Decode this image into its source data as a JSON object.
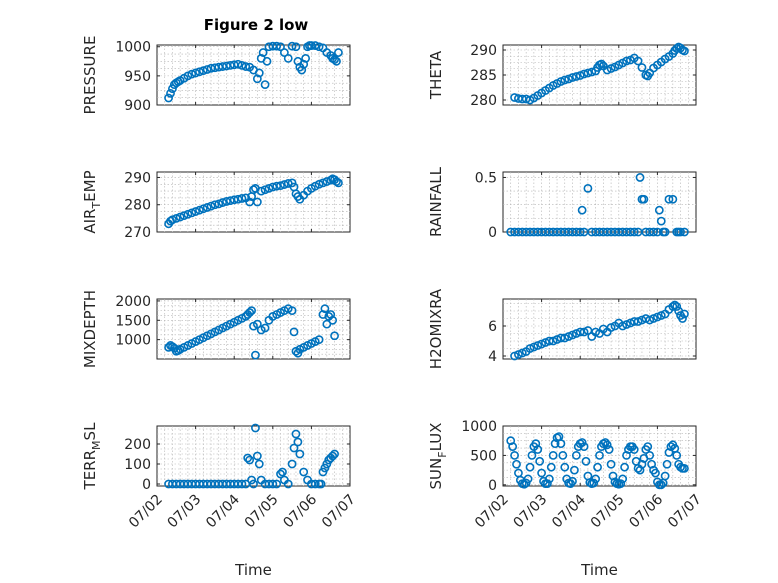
{
  "figure": {
    "title": "Figure 2 low",
    "marker_color": "#0072BD"
  },
  "chart_data": [
    {
      "type": "scatter",
      "title": "Figure 2 low",
      "ylabel": "PRESSURE",
      "ylabel_sub": "",
      "ylabel_after": "",
      "xlabel": "",
      "xlim": [
        0,
        5
      ],
      "ylim": [
        900,
        1003
      ],
      "yticks": [
        900,
        950,
        1000
      ],
      "show_xticklabels": false,
      "x": [
        0.3,
        0.35,
        0.4,
        0.45,
        0.5,
        0.55,
        0.6,
        0.7,
        0.8,
        0.9,
        1.0,
        1.1,
        1.2,
        1.3,
        1.4,
        1.5,
        1.6,
        1.7,
        1.8,
        1.9,
        2.0,
        2.1,
        2.2,
        2.3,
        2.4,
        2.5,
        2.6,
        2.65,
        2.7,
        2.75,
        2.8,
        2.85,
        2.9,
        3.0,
        3.1,
        3.2,
        3.3,
        3.4,
        3.5,
        3.6,
        3.65,
        3.7,
        3.75,
        3.8,
        3.85,
        3.9,
        3.95,
        4.0,
        4.1,
        4.2,
        4.3,
        4.4,
        4.5,
        4.55,
        4.6,
        4.65,
        4.7
      ],
      "y": [
        912,
        920,
        928,
        935,
        938,
        940,
        942,
        946,
        950,
        953,
        955,
        957,
        959,
        961,
        963,
        964,
        965,
        966,
        967,
        968,
        969,
        970,
        968,
        966,
        965,
        960,
        945,
        955,
        980,
        990,
        935,
        975,
        1000,
        1001,
        1001,
        1000,
        990,
        980,
        1001,
        1000,
        975,
        965,
        960,
        970,
        980,
        1000,
        1002,
        1002,
        1002,
        1000,
        998,
        990,
        985,
        980,
        978,
        975,
        990
      ]
    },
    {
      "type": "scatter",
      "title": "",
      "ylabel": "THETA",
      "ylabel_sub": "",
      "ylabel_after": "",
      "xlabel": "",
      "xlim": [
        0,
        5
      ],
      "ylim": [
        279,
        291
      ],
      "yticks": [
        280,
        285,
        290
      ],
      "show_xticklabels": false,
      "x": [
        0.3,
        0.4,
        0.5,
        0.6,
        0.7,
        0.8,
        0.9,
        1.0,
        1.1,
        1.2,
        1.3,
        1.4,
        1.5,
        1.6,
        1.7,
        1.8,
        1.9,
        2.0,
        2.1,
        2.2,
        2.3,
        2.4,
        2.45,
        2.5,
        2.55,
        2.6,
        2.7,
        2.8,
        2.9,
        3.0,
        3.1,
        3.2,
        3.3,
        3.4,
        3.5,
        3.6,
        3.7,
        3.75,
        3.8,
        3.9,
        4.0,
        4.1,
        4.2,
        4.3,
        4.4,
        4.45,
        4.5,
        4.55,
        4.6,
        4.65,
        4.7
      ],
      "y": [
        280.5,
        280.3,
        280.2,
        280.2,
        280.0,
        280.4,
        280.9,
        281.4,
        281.9,
        282.4,
        282.9,
        283.3,
        283.7,
        284.0,
        284.2,
        284.5,
        284.7,
        284.9,
        285.2,
        285.4,
        285.6,
        285.8,
        286.5,
        287.0,
        287.2,
        286.8,
        286.0,
        286.3,
        286.6,
        287.0,
        287.4,
        287.8,
        288.0,
        288.4,
        287.8,
        286.5,
        285.0,
        284.8,
        285.4,
        286.4,
        287.0,
        287.6,
        288.2,
        288.7,
        289.3,
        289.9,
        290.3,
        290.6,
        290.4,
        290.0,
        289.8
      ]
    },
    {
      "type": "scatter",
      "title": "",
      "ylabel": "AIR",
      "ylabel_sub": "T",
      "ylabel_after": "EMP",
      "xlabel": "",
      "xlim": [
        0,
        5
      ],
      "ylim": [
        270,
        292
      ],
      "yticks": [
        270,
        280,
        290
      ],
      "show_xticklabels": false,
      "x": [
        0.3,
        0.35,
        0.4,
        0.5,
        0.6,
        0.7,
        0.8,
        0.9,
        1.0,
        1.1,
        1.2,
        1.3,
        1.4,
        1.5,
        1.6,
        1.7,
        1.8,
        1.9,
        2.0,
        2.1,
        2.2,
        2.3,
        2.4,
        2.45,
        2.5,
        2.55,
        2.6,
        2.7,
        2.8,
        2.9,
        3.0,
        3.1,
        3.2,
        3.3,
        3.4,
        3.5,
        3.55,
        3.6,
        3.65,
        3.7,
        3.8,
        3.9,
        4.0,
        4.1,
        4.2,
        4.3,
        4.4,
        4.5,
        4.55,
        4.6,
        4.65,
        4.7
      ],
      "y": [
        273,
        274,
        274.5,
        275,
        275.5,
        276,
        276.5,
        277,
        277.5,
        278,
        278.5,
        279,
        279.5,
        280,
        280.3,
        280.8,
        281.2,
        281.5,
        281.8,
        282,
        282.3,
        282.5,
        281,
        283,
        285.5,
        286,
        281,
        285,
        285.5,
        286,
        286.5,
        286.8,
        287,
        287.4,
        287.8,
        288,
        286.5,
        284,
        283,
        282,
        283.5,
        285,
        286,
        286.8,
        287.5,
        288,
        288.5,
        289,
        289.5,
        289.2,
        288.5,
        288
      ]
    },
    {
      "type": "scatter",
      "title": "",
      "ylabel": "RAINFALL",
      "ylabel_sub": "",
      "ylabel_after": "",
      "xlabel": "",
      "xlim": [
        0,
        5
      ],
      "ylim": [
        0,
        0.55
      ],
      "yticks": [
        0,
        0.5
      ],
      "show_xticklabels": false,
      "x": [
        0.2,
        0.3,
        0.4,
        0.5,
        0.6,
        0.7,
        0.8,
        0.9,
        1.0,
        1.1,
        1.2,
        1.3,
        1.4,
        1.5,
        1.6,
        1.7,
        1.8,
        1.9,
        2.0,
        2.05,
        2.1,
        2.2,
        2.3,
        2.4,
        2.5,
        2.6,
        2.7,
        2.8,
        2.9,
        3.0,
        3.1,
        3.2,
        3.3,
        3.4,
        3.5,
        3.55,
        3.6,
        3.65,
        3.7,
        3.8,
        3.9,
        4.0,
        4.05,
        4.1,
        4.15,
        4.2,
        4.3,
        4.4,
        4.5,
        4.55,
        4.6,
        4.7
      ],
      "y": [
        0,
        0,
        0,
        0,
        0,
        0,
        0,
        0,
        0,
        0,
        0,
        0,
        0,
        0,
        0,
        0,
        0,
        0,
        0,
        0.2,
        0,
        0.4,
        0,
        0,
        0,
        0,
        0,
        0,
        0,
        0,
        0,
        0,
        0,
        0,
        0,
        0.5,
        0.3,
        0.3,
        0,
        0,
        0,
        0,
        0.2,
        0.1,
        0,
        0,
        0.3,
        0.3,
        0,
        0,
        0,
        0
      ]
    },
    {
      "type": "scatter",
      "title": "",
      "ylabel": "MIXDEPTH",
      "ylabel_sub": "",
      "ylabel_after": "",
      "xlabel": "",
      "xlim": [
        0,
        5
      ],
      "ylim": [
        500,
        2050
      ],
      "yticks": [
        1000,
        1500,
        2000
      ],
      "show_xticklabels": false,
      "x": [
        0.3,
        0.35,
        0.4,
        0.45,
        0.5,
        0.55,
        0.6,
        0.7,
        0.8,
        0.9,
        1.0,
        1.1,
        1.2,
        1.3,
        1.4,
        1.5,
        1.6,
        1.7,
        1.8,
        1.9,
        2.0,
        2.1,
        2.2,
        2.3,
        2.35,
        2.4,
        2.45,
        2.5,
        2.55,
        2.6,
        2.7,
        2.8,
        2.9,
        3.0,
        3.1,
        3.2,
        3.3,
        3.4,
        3.5,
        3.55,
        3.6,
        3.65,
        3.7,
        3.8,
        3.9,
        4.0,
        4.1,
        4.2,
        4.3,
        4.35,
        4.4,
        4.45,
        4.5,
        4.55,
        4.6
      ],
      "y": [
        800,
        850,
        820,
        780,
        700,
        720,
        750,
        800,
        850,
        900,
        950,
        1000,
        1050,
        1100,
        1150,
        1200,
        1250,
        1300,
        1350,
        1400,
        1450,
        1500,
        1550,
        1600,
        1650,
        1700,
        1750,
        1350,
        600,
        1400,
        1250,
        1300,
        1500,
        1600,
        1650,
        1700,
        1750,
        1800,
        1750,
        1200,
        700,
        650,
        750,
        800,
        850,
        900,
        950,
        1000,
        1650,
        1800,
        1400,
        1600,
        1650,
        1500,
        1100
      ]
    },
    {
      "type": "scatter",
      "title": "",
      "ylabel": "H2OMIXRA",
      "ylabel_sub": "",
      "ylabel_after": "",
      "xlabel": "",
      "xlim": [
        0,
        5
      ],
      "ylim": [
        3.8,
        7.8
      ],
      "yticks": [
        4,
        6
      ],
      "show_xticklabels": false,
      "x": [
        0.3,
        0.4,
        0.5,
        0.6,
        0.7,
        0.8,
        0.9,
        1.0,
        1.1,
        1.2,
        1.3,
        1.4,
        1.5,
        1.6,
        1.7,
        1.8,
        1.9,
        2.0,
        2.1,
        2.2,
        2.3,
        2.4,
        2.5,
        2.6,
        2.7,
        2.8,
        2.9,
        3.0,
        3.1,
        3.2,
        3.3,
        3.4,
        3.5,
        3.6,
        3.7,
        3.8,
        3.9,
        4.0,
        4.1,
        4.2,
        4.3,
        4.4,
        4.45,
        4.5,
        4.55,
        4.6,
        4.65,
        4.7
      ],
      "y": [
        4.0,
        4.1,
        4.2,
        4.3,
        4.5,
        4.6,
        4.7,
        4.8,
        4.9,
        5.0,
        5.0,
        5.1,
        5.2,
        5.2,
        5.3,
        5.4,
        5.5,
        5.6,
        5.6,
        5.7,
        5.3,
        5.6,
        5.5,
        5.8,
        5.6,
        5.9,
        6.0,
        6.2,
        6.0,
        6.1,
        6.2,
        6.3,
        6.3,
        6.4,
        6.5,
        6.4,
        6.5,
        6.6,
        6.7,
        6.8,
        7.1,
        7.3,
        7.4,
        7.3,
        7.0,
        6.7,
        6.5,
        6.8
      ]
    },
    {
      "type": "scatter",
      "title": "",
      "ylabel": "TERR",
      "ylabel_sub": "M",
      "ylabel_after": "SL",
      "xlabel": "Time",
      "xlim": [
        0,
        5
      ],
      "ylim": [
        -10,
        290
      ],
      "yticks": [
        0,
        100,
        200
      ],
      "show_xticklabels": true,
      "xticks": [
        0,
        1,
        2,
        3,
        4,
        5
      ],
      "xticklabels": [
        "07/02",
        "07/03",
        "07/04",
        "07/05",
        "07/06",
        "07/07"
      ],
      "x": [
        0.3,
        0.4,
        0.5,
        0.6,
        0.7,
        0.8,
        0.9,
        1.0,
        1.1,
        1.2,
        1.3,
        1.4,
        1.5,
        1.6,
        1.7,
        1.8,
        1.9,
        2.0,
        2.1,
        2.2,
        2.3,
        2.35,
        2.4,
        2.45,
        2.5,
        2.55,
        2.6,
        2.65,
        2.7,
        2.8,
        2.9,
        3.0,
        3.1,
        3.2,
        3.25,
        3.3,
        3.4,
        3.5,
        3.55,
        3.6,
        3.65,
        3.7,
        3.8,
        3.9,
        4.0,
        4.1,
        4.2,
        4.25,
        4.3,
        4.35,
        4.4,
        4.45,
        4.5,
        4.55,
        4.6
      ],
      "y": [
        0,
        0,
        0,
        0,
        0,
        0,
        0,
        0,
        0,
        0,
        0,
        0,
        0,
        0,
        0,
        0,
        0,
        0,
        0,
        0,
        0,
        130,
        120,
        20,
        0,
        280,
        140,
        100,
        20,
        0,
        0,
        0,
        0,
        50,
        60,
        20,
        0,
        100,
        180,
        250,
        210,
        150,
        60,
        20,
        0,
        0,
        0,
        0,
        60,
        80,
        100,
        120,
        130,
        140,
        150
      ]
    },
    {
      "type": "scatter",
      "title": "",
      "ylabel": "SUN",
      "ylabel_sub": "F",
      "ylabel_after": "LUX",
      "xlabel": "Time",
      "xlim": [
        0,
        5
      ],
      "ylim": [
        -20,
        1000
      ],
      "yticks": [
        0,
        500,
        1000
      ],
      "show_xticklabels": true,
      "xticks": [
        0,
        1,
        2,
        3,
        4,
        5
      ],
      "xticklabels": [
        "07/02",
        "07/03",
        "07/04",
        "07/05",
        "07/06",
        "07/07"
      ],
      "x": [
        0.2,
        0.25,
        0.3,
        0.35,
        0.4,
        0.45,
        0.5,
        0.55,
        0.6,
        0.65,
        0.7,
        0.75,
        0.8,
        0.85,
        0.9,
        0.95,
        1.0,
        1.05,
        1.1,
        1.15,
        1.2,
        1.25,
        1.3,
        1.35,
        1.4,
        1.45,
        1.5,
        1.55,
        1.6,
        1.65,
        1.7,
        1.75,
        1.8,
        1.85,
        1.9,
        1.95,
        2.0,
        2.05,
        2.1,
        2.15,
        2.2,
        2.25,
        2.3,
        2.35,
        2.4,
        2.45,
        2.5,
        2.55,
        2.6,
        2.65,
        2.7,
        2.75,
        2.8,
        2.85,
        2.9,
        2.95,
        3.0,
        3.05,
        3.1,
        3.15,
        3.2,
        3.25,
        3.3,
        3.35,
        3.4,
        3.45,
        3.5,
        3.55,
        3.6,
        3.65,
        3.7,
        3.75,
        3.8,
        3.85,
        3.9,
        3.95,
        4.0,
        4.05,
        4.1,
        4.15,
        4.2,
        4.25,
        4.3,
        4.35,
        4.4,
        4.45,
        4.5,
        4.55,
        4.6,
        4.65,
        4.7
      ],
      "y": [
        750,
        650,
        500,
        350,
        200,
        80,
        20,
        10,
        30,
        100,
        300,
        500,
        650,
        700,
        600,
        400,
        200,
        60,
        20,
        20,
        100,
        300,
        500,
        700,
        800,
        820,
        700,
        500,
        300,
        100,
        30,
        20,
        60,
        250,
        500,
        650,
        700,
        720,
        650,
        400,
        150,
        40,
        20,
        30,
        100,
        300,
        500,
        650,
        700,
        720,
        680,
        600,
        350,
        150,
        50,
        20,
        10,
        20,
        100,
        300,
        500,
        600,
        650,
        650,
        600,
        400,
        280,
        250,
        350,
        450,
        600,
        650,
        500,
        350,
        250,
        200,
        50,
        0,
        0,
        30,
        150,
        350,
        550,
        650,
        680,
        620,
        500,
        350,
        300,
        280,
        280
      ]
    }
  ]
}
